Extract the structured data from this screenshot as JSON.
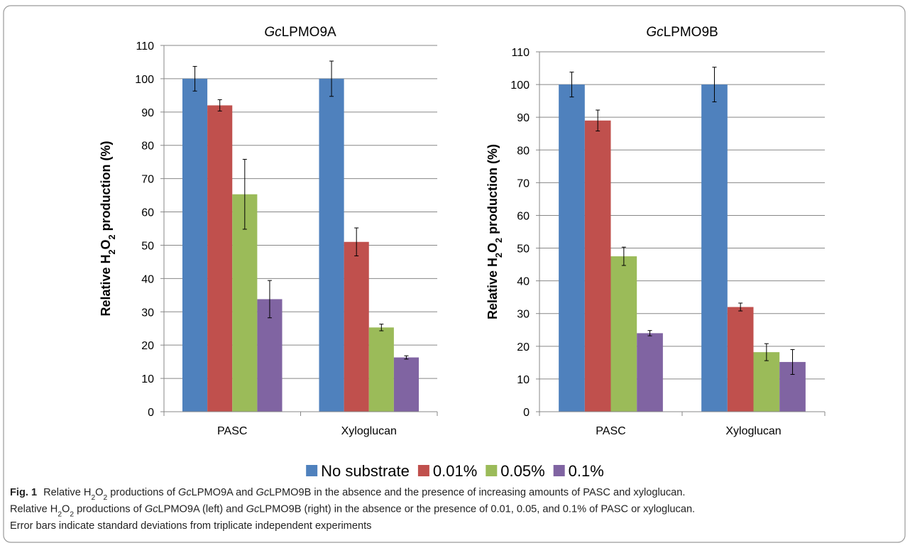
{
  "chart_data": [
    {
      "type": "bar",
      "title": [
        {
          "t": "Gc",
          "i": true
        },
        {
          "t": "LPMO9A"
        }
      ],
      "ylabel": [
        {
          "t": "Relative H"
        },
        {
          "t": "2",
          "sub": true
        },
        {
          "t": "O"
        },
        {
          "t": "2",
          "sub": true
        },
        {
          "t": " production (%)"
        }
      ],
      "categories": [
        "PASC",
        "Xyloglucan"
      ],
      "ylim": [
        0,
        110
      ],
      "yticks": [
        0,
        10,
        20,
        30,
        40,
        50,
        60,
        70,
        80,
        90,
        100,
        110
      ],
      "grid": true,
      "series": [
        {
          "name": "No substrate",
          "color": "#4f81bd",
          "values": [
            100,
            100
          ],
          "errors": [
            3.7,
            5.3
          ]
        },
        {
          "name": "0.01%",
          "color": "#c0504d",
          "values": [
            92,
            51
          ],
          "errors": [
            1.7,
            4.2
          ]
        },
        {
          "name": "0.05%",
          "color": "#9bbb59",
          "values": [
            65.3,
            25.3
          ],
          "errors": [
            10.5,
            1
          ]
        },
        {
          "name": "0.1%",
          "color": "#8064a2",
          "values": [
            33.8,
            16.3
          ],
          "errors": [
            5.6,
            0.5
          ]
        }
      ]
    },
    {
      "type": "bar",
      "title": [
        {
          "t": "Gc",
          "i": true
        },
        {
          "t": "LPMO9B"
        }
      ],
      "ylabel": [
        {
          "t": "Relative H"
        },
        {
          "t": "2",
          "sub": true
        },
        {
          "t": "O"
        },
        {
          "t": "2",
          "sub": true
        },
        {
          "t": " production (%)"
        }
      ],
      "categories": [
        "PASC",
        "Xyloglucan"
      ],
      "ylim": [
        0,
        110
      ],
      "yticks": [
        0,
        10,
        20,
        30,
        40,
        50,
        60,
        70,
        80,
        90,
        100,
        110
      ],
      "grid": true,
      "series": [
        {
          "name": "No substrate",
          "color": "#4f81bd",
          "values": [
            100,
            100
          ],
          "errors": [
            3.8,
            5.3
          ]
        },
        {
          "name": "0.01%",
          "color": "#c0504d",
          "values": [
            89,
            32
          ],
          "errors": [
            3.2,
            1.2
          ]
        },
        {
          "name": "0.05%",
          "color": "#9bbb59",
          "values": [
            47.5,
            18.2
          ],
          "errors": [
            2.8,
            2.6
          ]
        },
        {
          "name": "0.1%",
          "color": "#8064a2",
          "values": [
            24,
            15.2
          ],
          "errors": [
            0.8,
            3.8
          ]
        }
      ]
    }
  ],
  "caption": {
    "lines": [
      [
        {
          "t": "Fig. 1",
          "b": true
        },
        {
          "t": "Relative H"
        },
        {
          "t": "2",
          "sub": true
        },
        {
          "t": "O"
        },
        {
          "t": "2",
          "sub": true
        },
        {
          "t": " productions of "
        },
        {
          "t": "Gc",
          "i": true
        },
        {
          "t": "LPMO9A and "
        },
        {
          "t": "Gc",
          "i": true
        },
        {
          "t": "LPMO9B in the absence and the presence of increasing amounts of PASC and xyloglucan."
        }
      ],
      [
        {
          "t": "Relative H"
        },
        {
          "t": "2",
          "sub": true
        },
        {
          "t": "O"
        },
        {
          "t": "2",
          "sub": true
        },
        {
          "t": " productions of "
        },
        {
          "t": "Gc",
          "i": true
        },
        {
          "t": "LPMO9A (left) and "
        },
        {
          "t": "Gc",
          "i": true
        },
        {
          "t": "LPMO9B (right) in the absence or the presence of 0.01, 0.05, and 0.1% of PASC or xyloglucan."
        }
      ],
      [
        {
          "t": "Error bars indicate standard deviations from triplicate independent experiments"
        }
      ]
    ]
  }
}
